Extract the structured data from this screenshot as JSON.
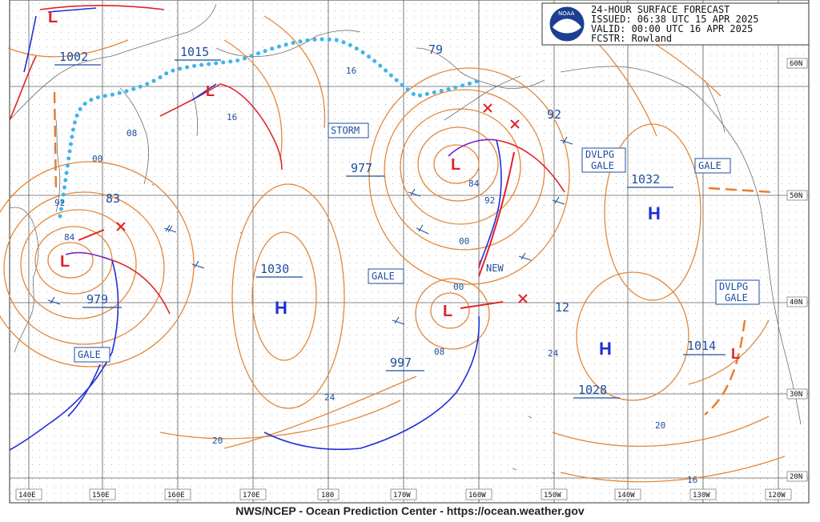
{
  "header": {
    "title": "24-HOUR SURFACE FORECAST",
    "issued": "ISSUED: 06:38 UTC 15 APR 2025",
    "valid": "VALID:  00:00 UTC 16 APR 2025",
    "forecaster": "FCSTR:  Rowland",
    "logo_text": "NOAA"
  },
  "footer": "NWS/NCEP - Ocean Prediction Center - https://ocean.weather.gov",
  "colors": {
    "isobar": "#e2873a",
    "cold_front": "#1f2fd6",
    "warm_front": "#e0232a",
    "occluded_front": "#7a22c8",
    "ice_edge": "#3fb5ea",
    "label_blue": "#1f4fa0",
    "pressure_letter_high": "#1f2fd6",
    "pressure_letter_low": "#e0232a"
  },
  "lon_labels": [
    "140E",
    "150E",
    "160E",
    "170E",
    "180",
    "170W",
    "160W",
    "150W",
    "140W",
    "130W",
    "120W"
  ],
  "lat_labels": [
    "60N",
    "50N",
    "40N",
    "30N",
    "20N"
  ],
  "centers": {
    "highs": [
      {
        "letter": "H",
        "pressure": "1030"
      },
      {
        "letter": "H",
        "pressure": "1032"
      },
      {
        "letter": "H",
        "pressure": "1028"
      }
    ],
    "lows": [
      {
        "letter": "L",
        "pressure": "1002"
      },
      {
        "letter": "L",
        "pressure": "1015"
      },
      {
        "letter": "L",
        "pressure": "979"
      },
      {
        "letter": "L",
        "pressure": "977"
      },
      {
        "letter": "L",
        "pressure": "997"
      },
      {
        "letter": "L",
        "pressure": "1014"
      }
    ]
  },
  "isobar_labels": [
    "16",
    "08",
    "00",
    "92",
    "84",
    "84",
    "92",
    "00",
    "00",
    "08",
    "16",
    "24",
    "20",
    "24",
    "20",
    "16",
    "83",
    "79",
    "92",
    "12"
  ],
  "warnings": [
    "STORM",
    "GALE",
    "GALE",
    "GALE",
    "DVLPG\nGALE",
    "DVLPG\nGALE",
    "NEW"
  ]
}
